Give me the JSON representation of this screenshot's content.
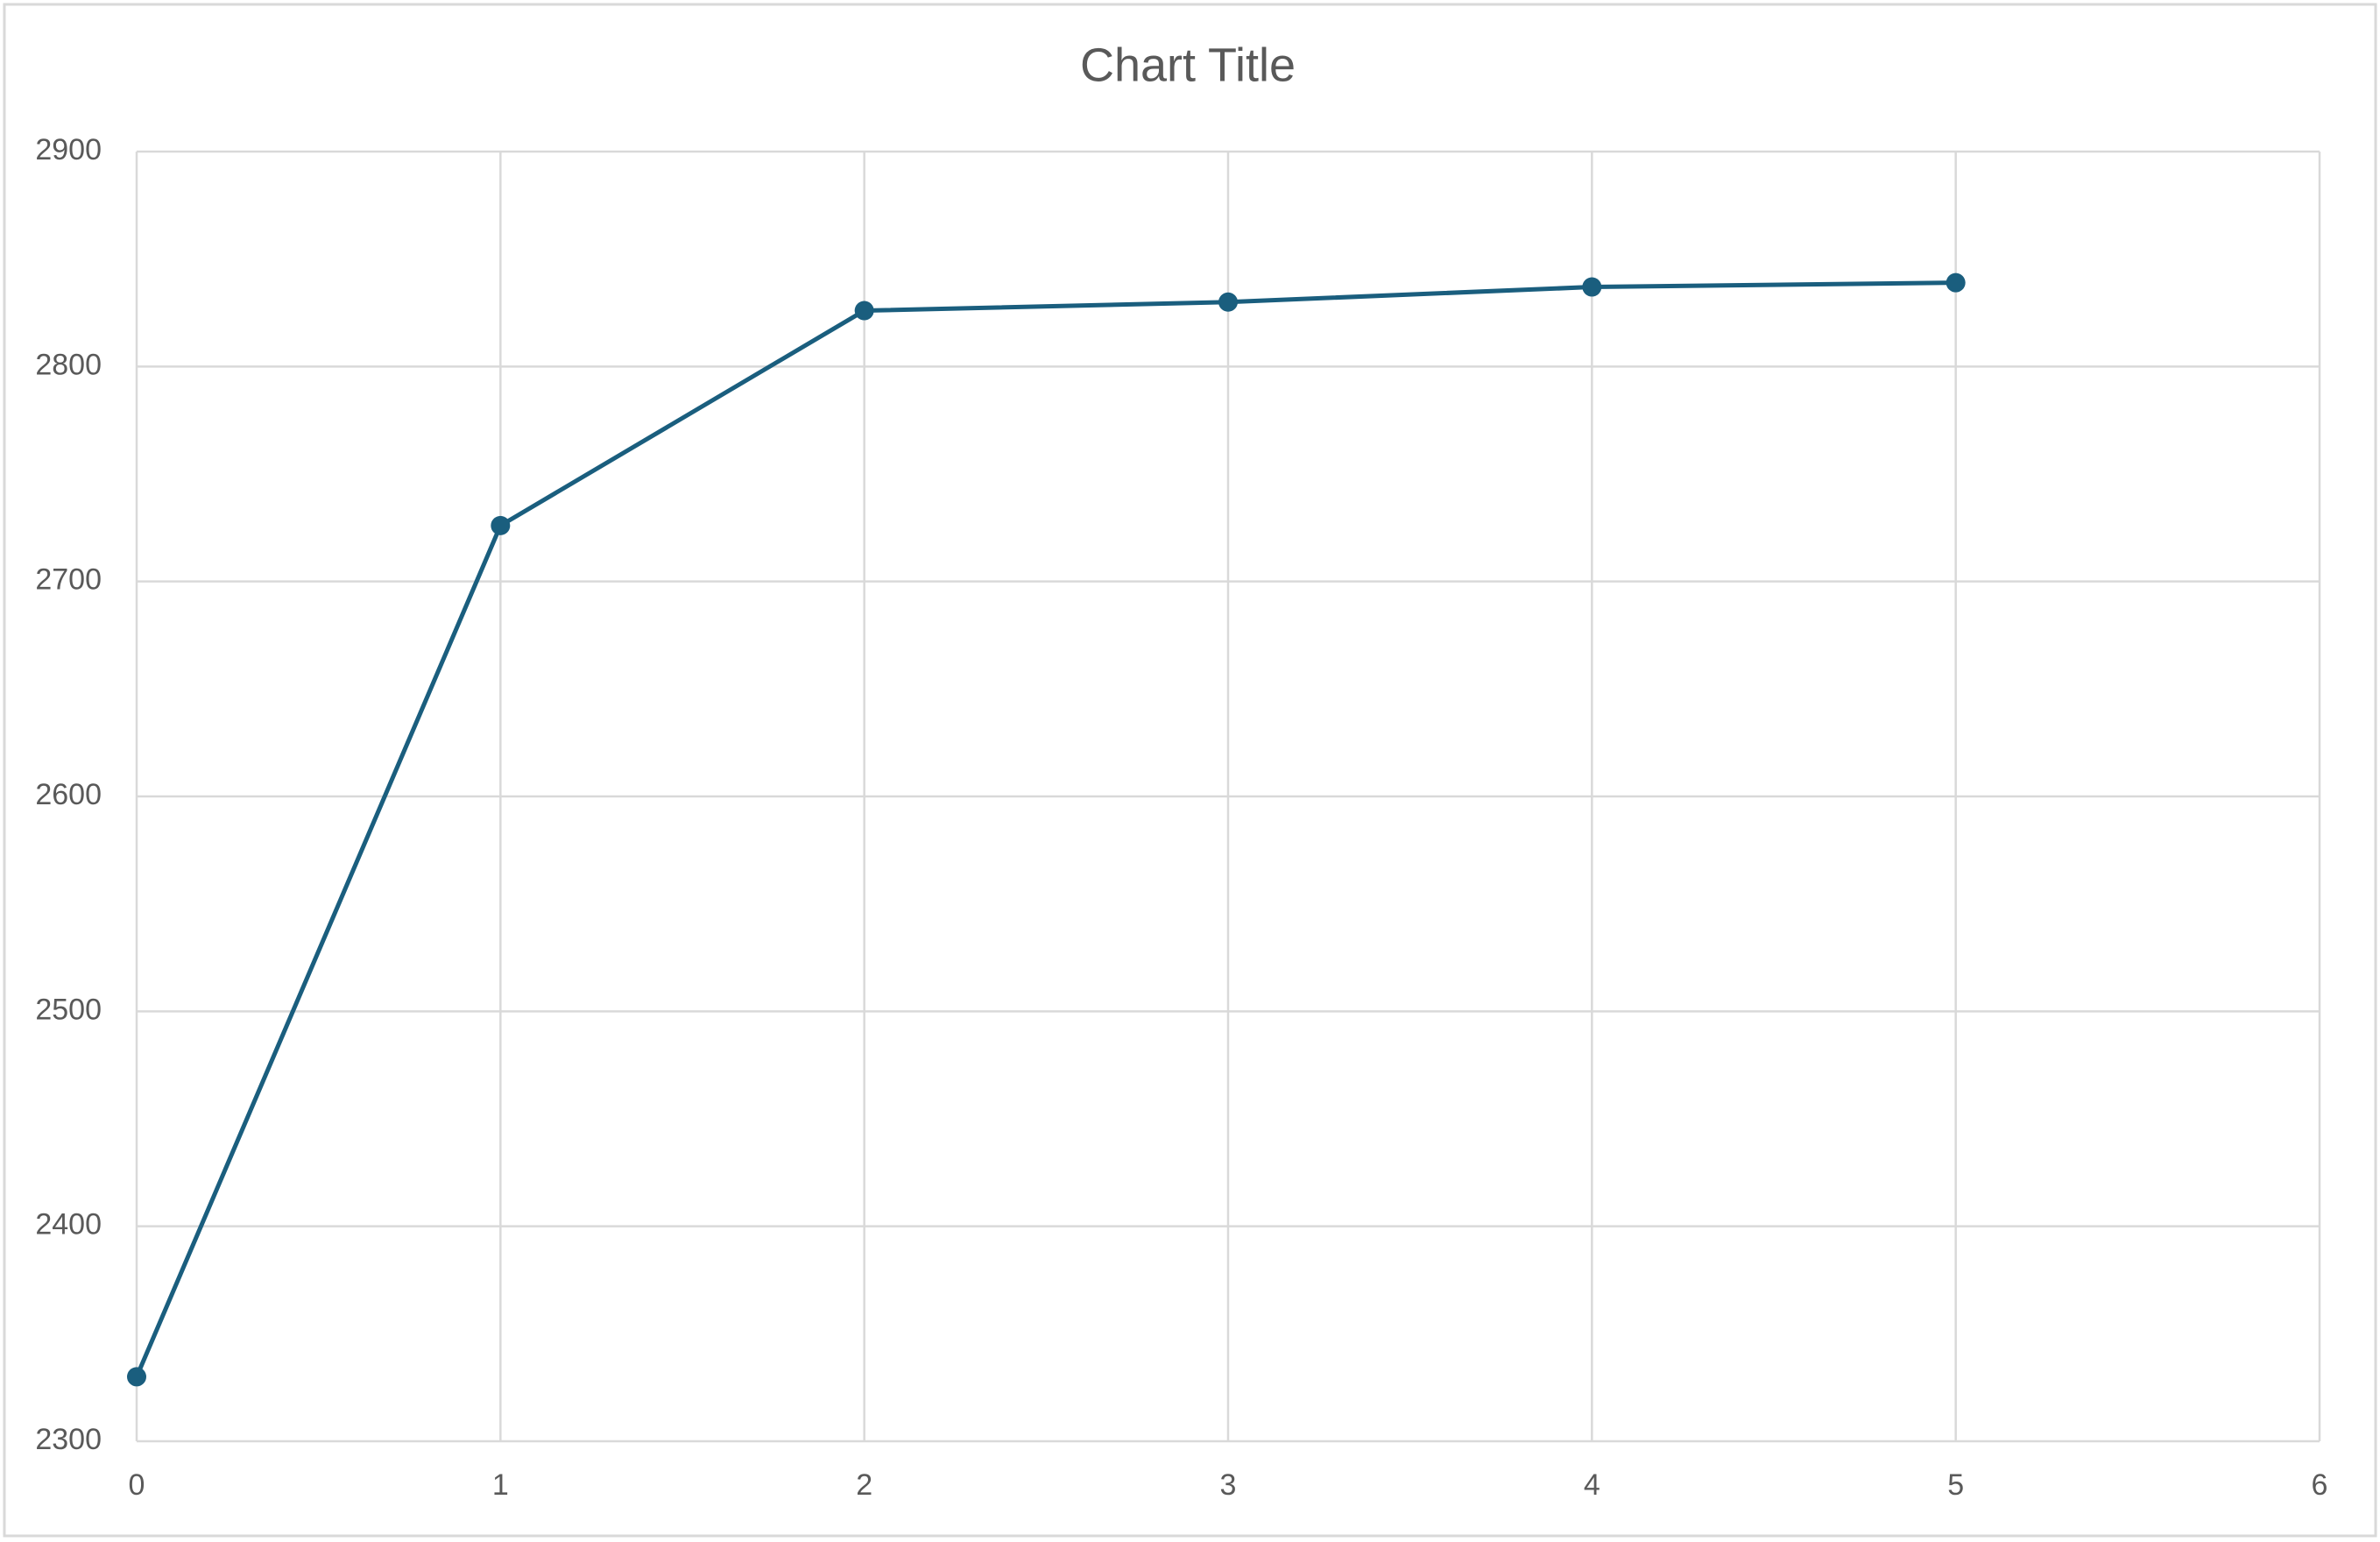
{
  "chart_data": {
    "type": "line",
    "title": "Chart Title",
    "x": [
      0,
      1,
      2,
      3,
      4,
      5
    ],
    "values": [
      2330,
      2726,
      2826,
      2830,
      2837,
      2839
    ],
    "color": "#1a5e7e",
    "xlim": [
      0,
      6
    ],
    "xticks": [
      0,
      1,
      2,
      3,
      4,
      5,
      6
    ],
    "ylim": [
      2300,
      2900
    ],
    "yticks": [
      2300,
      2400,
      2500,
      2600,
      2700,
      2800,
      2900
    ],
    "grid": true
  }
}
